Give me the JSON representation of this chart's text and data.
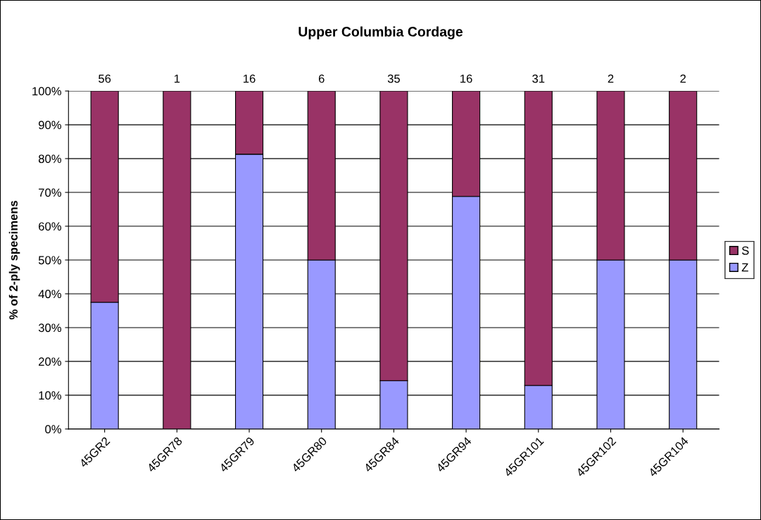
{
  "chart_data": {
    "type": "bar",
    "title": "Upper Columbia Cordage",
    "ylabel": "% of 2-ply specimens",
    "categories": [
      "45GR2",
      "45GR78",
      "45GR79",
      "45GR80",
      "45GR84",
      "45GR94",
      "45GR101",
      "45GR102",
      "45GR104"
    ],
    "stacked": true,
    "series": [
      {
        "name": "Z",
        "color": "#9999ff",
        "values": [
          37.5,
          0,
          81.3,
          50,
          14.3,
          68.8,
          12.9,
          50,
          50
        ]
      },
      {
        "name": "S",
        "color": "#993366",
        "values": [
          62.5,
          100,
          18.7,
          50,
          85.7,
          31.2,
          87.1,
          50,
          50
        ]
      }
    ],
    "annotations": [
      {
        "text": "56",
        "x": "45GR2",
        "y": 100
      },
      {
        "text": "1",
        "x": "45GR78",
        "y": 100
      },
      {
        "text": "16",
        "x": "45GR79",
        "y": 100
      },
      {
        "text": "6",
        "x": "45GR80",
        "y": 100
      },
      {
        "text": "35",
        "x": "45GR84",
        "y": 100
      },
      {
        "text": "16",
        "x": "45GR94",
        "y": 100
      },
      {
        "text": "31",
        "x": "45GR101",
        "y": 100
      },
      {
        "text": "2",
        "x": "45GR102",
        "y": 100
      },
      {
        "text": "2",
        "x": "45GR104",
        "y": 100
      }
    ],
    "ylim": [
      0,
      100
    ],
    "yticks": [
      {
        "value": 0,
        "label": "0%"
      },
      {
        "value": 10,
        "label": "10%"
      },
      {
        "value": 20,
        "label": "20%"
      },
      {
        "value": 30,
        "label": "30%"
      },
      {
        "value": 40,
        "label": "40%"
      },
      {
        "value": 50,
        "label": "50%"
      },
      {
        "value": 60,
        "label": "60%"
      },
      {
        "value": 70,
        "label": "70%"
      },
      {
        "value": 80,
        "label": "80%"
      },
      {
        "value": 90,
        "label": "90%"
      },
      {
        "value": 100,
        "label": "100%"
      }
    ],
    "grid": "y",
    "legend": "right"
  }
}
